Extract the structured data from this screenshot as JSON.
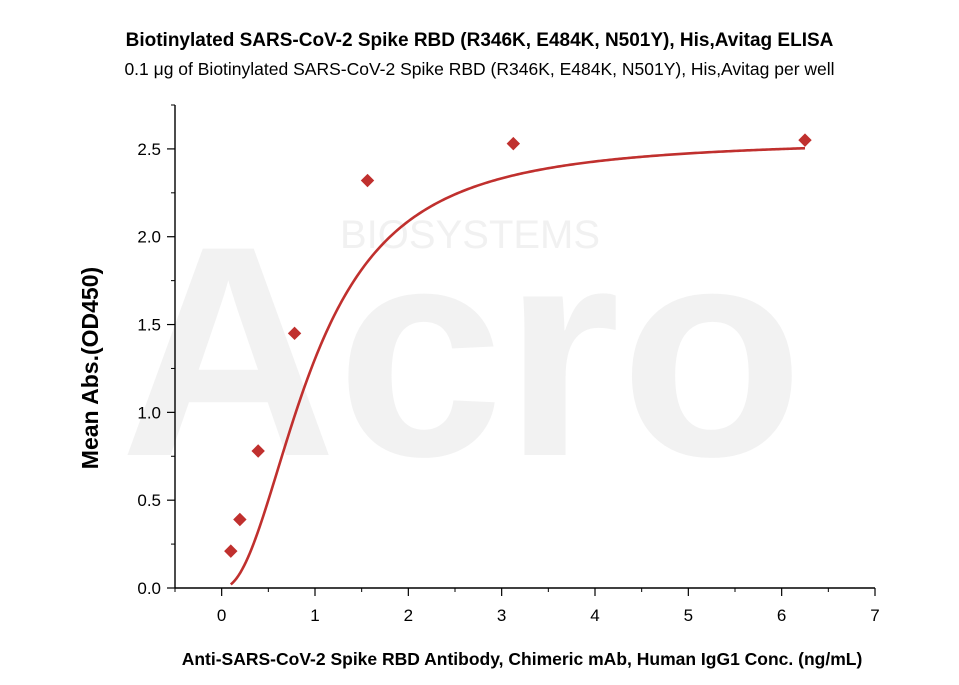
{
  "chart_data": {
    "type": "scatter",
    "title": "Biotinylated SARS-CoV-2 Spike RBD (R346K, E484K, N501Y), His,Avitag ELISA",
    "subtitle": "0.1 μg of Biotinylated SARS-CoV-2 Spike RBD (R346K, E484K, N501Y), His,Avitag per well",
    "xlabel": "Anti-SARS-CoV-2 Spike RBD Antibody, Chimeric mAb, Human IgG1 Conc. (ng/mL)",
    "ylabel": "Mean Abs.(OD450)",
    "xlim": [
      -0.5,
      7
    ],
    "ylim": [
      0,
      2.75
    ],
    "x_ticks": [
      "0",
      "1",
      "2",
      "3",
      "4",
      "5",
      "6",
      "7"
    ],
    "y_ticks": [
      "0.0",
      "0.5",
      "1.0",
      "1.5",
      "2.0",
      "2.5"
    ],
    "grid": false,
    "series": [
      {
        "marker": "diamond",
        "color": "#c0302e",
        "x": [
          0.098,
          0.195,
          0.391,
          0.781,
          1.5625,
          3.125,
          6.25
        ],
        "y": [
          0.21,
          0.39,
          0.78,
          1.45,
          2.32,
          2.53,
          2.55
        ]
      }
    ],
    "fit_curve": {
      "type": "4PL",
      "color": "#c0302e"
    }
  },
  "watermark": {
    "brand": "Acro",
    "text": "BIOSYSTEMS"
  }
}
